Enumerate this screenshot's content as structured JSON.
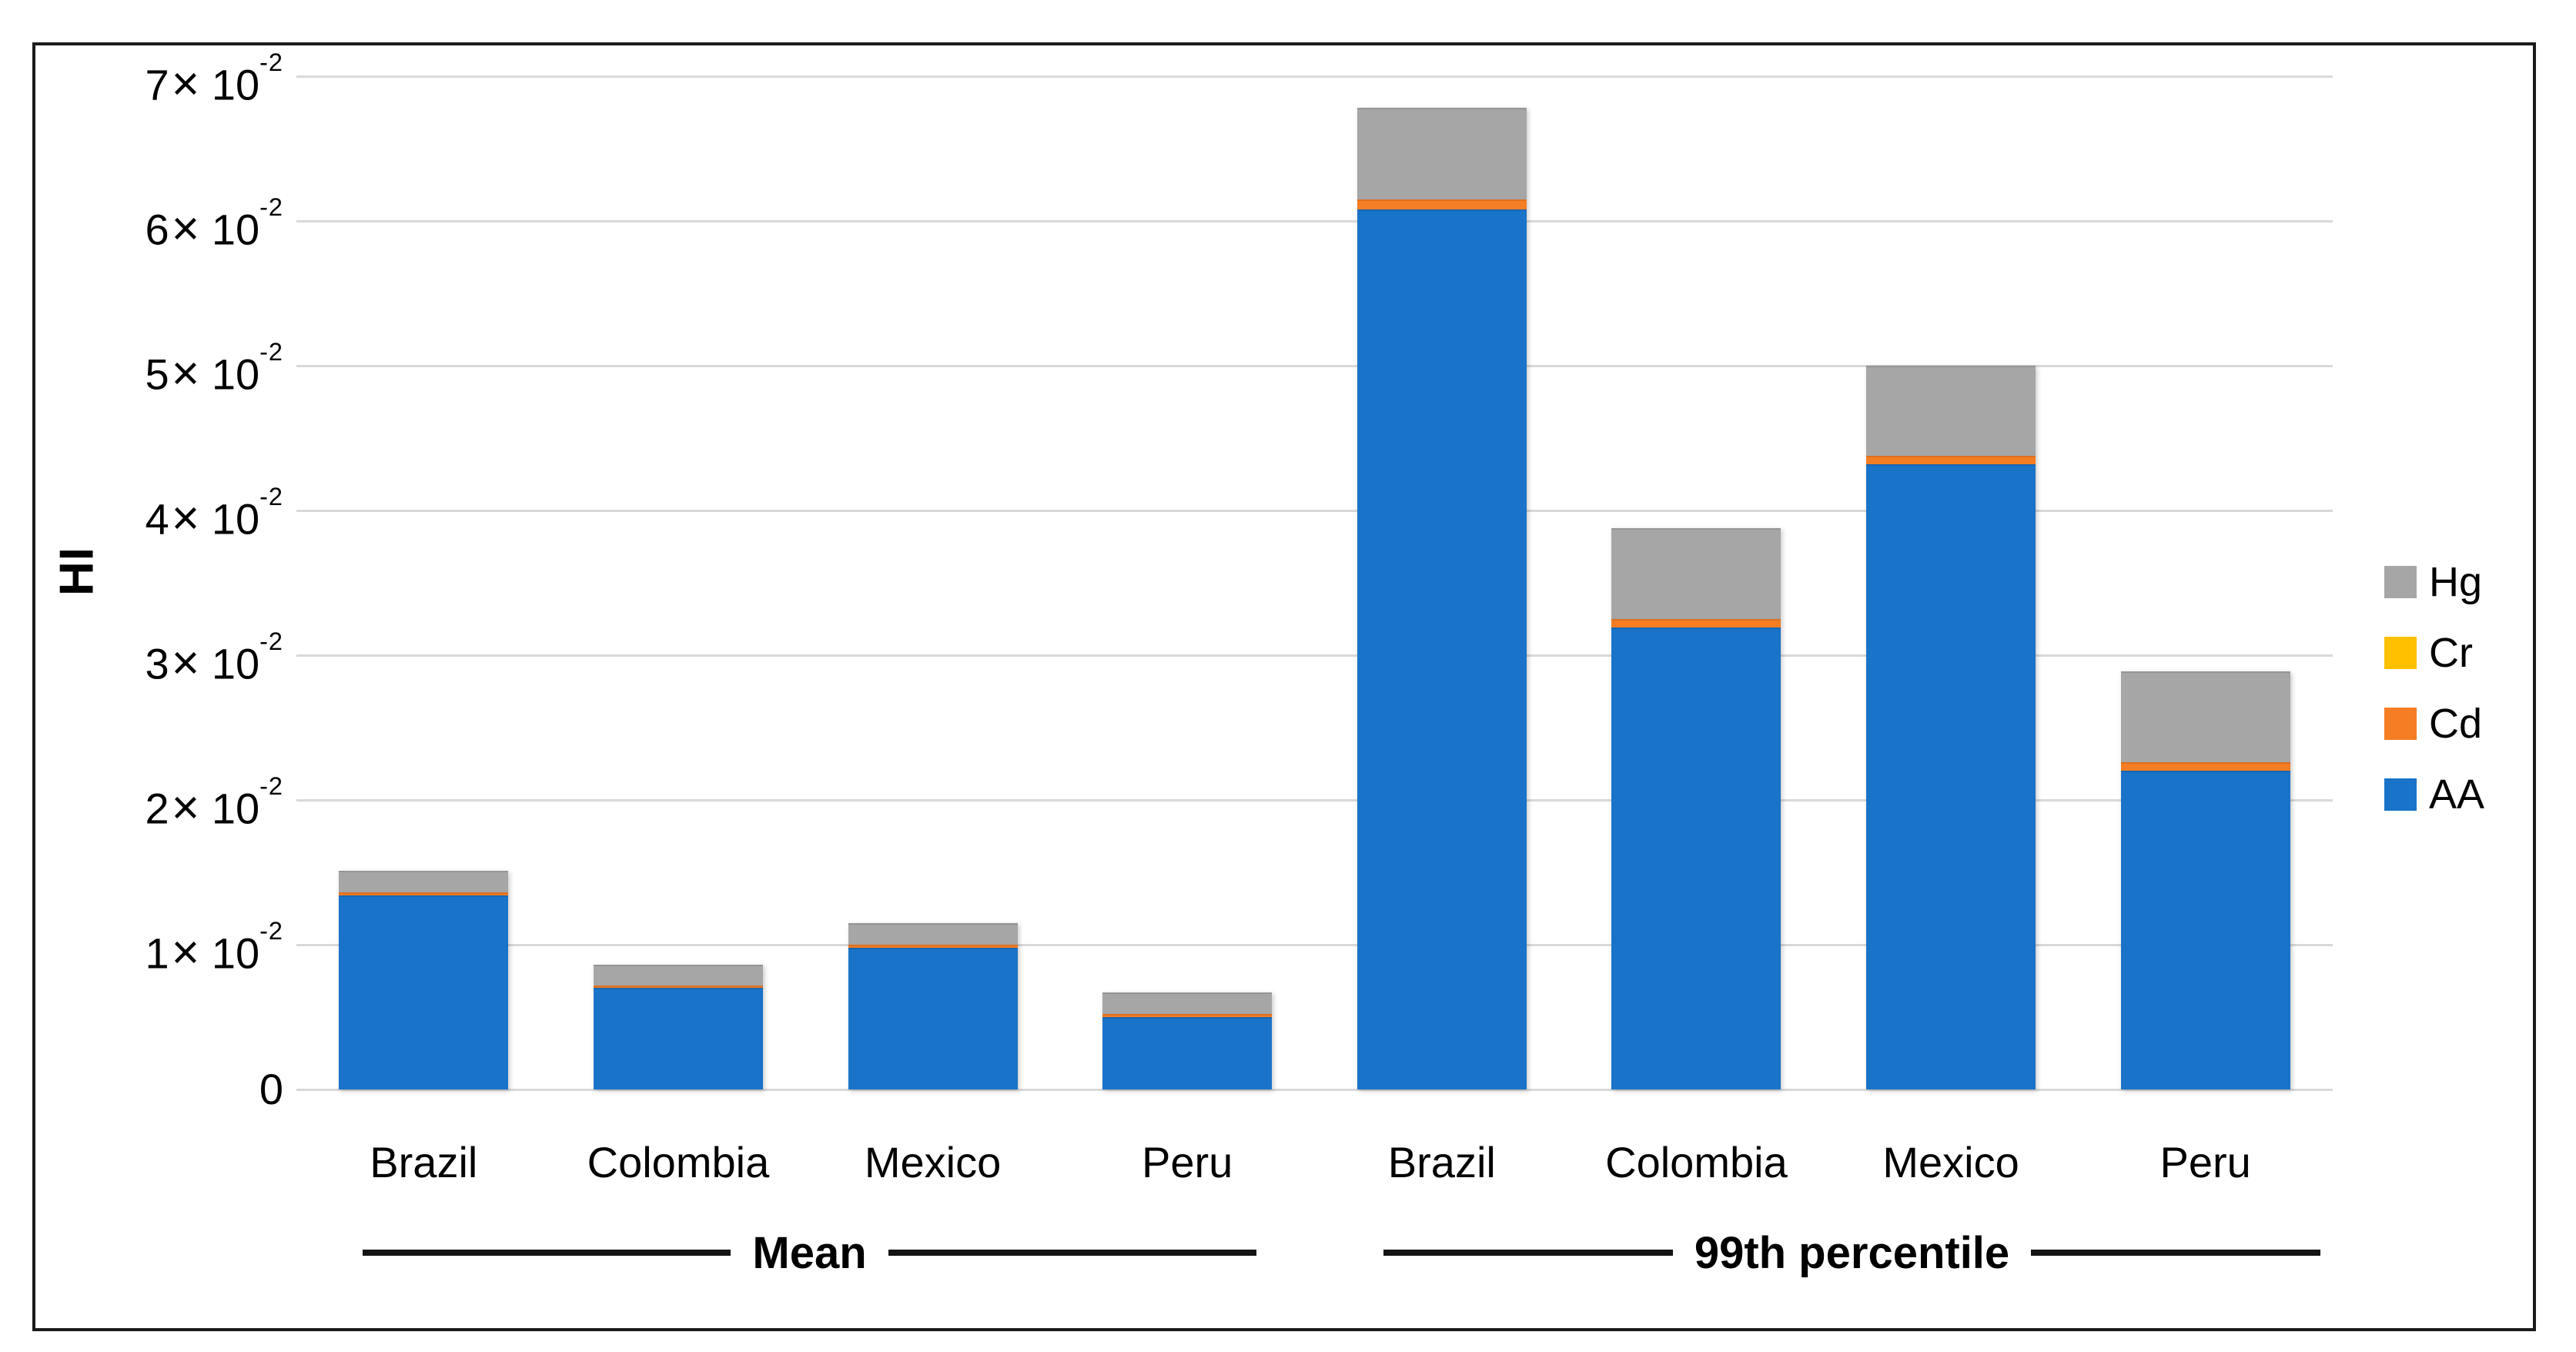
{
  "chart_data": {
    "type": "bar",
    "stacked": true,
    "title": "",
    "xlabel": "",
    "ylabel": "HI",
    "ylim": [
      0,
      0.07
    ],
    "ytick_coefs": [
      0,
      1,
      2,
      3,
      4,
      5,
      6,
      7
    ],
    "ytick_label_format": "c × 10⁻²  (0 shown as 0)",
    "grid": true,
    "gridline_color": "#d9d9d9",
    "categories": [
      "Brazil",
      "Colombia",
      "Mexico",
      "Peru",
      "Brazil",
      "Colombia",
      "Mexico",
      "Peru"
    ],
    "groups": [
      {
        "label": "Mean",
        "category_indexes": [
          0,
          1,
          2,
          3
        ]
      },
      {
        "label": "99th percentile",
        "category_indexes": [
          4,
          5,
          6,
          7
        ]
      }
    ],
    "series": [
      {
        "name": "AA",
        "color": "#1973C8",
        "values": [
          0.0134,
          0.007,
          0.0098,
          0.005,
          0.0608,
          0.0319,
          0.0432,
          0.022
        ]
      },
      {
        "name": "Cd",
        "color": "#F57D23",
        "values": [
          0.0002,
          0.0002,
          0.0002,
          0.0002,
          0.0007,
          0.0006,
          0.0006,
          0.0006
        ]
      },
      {
        "name": "Cr",
        "color": "#FFC000",
        "values": [
          0,
          0,
          0,
          0,
          0,
          0,
          0,
          0
        ]
      },
      {
        "name": "Hg",
        "color": "#A6A6A6",
        "values": [
          0.0015,
          0.0014,
          0.0015,
          0.0015,
          0.0063,
          0.0063,
          0.0062,
          0.0063
        ]
      }
    ],
    "legend_position": "right",
    "legend_order": [
      "Hg",
      "Cr",
      "Cd",
      "AA"
    ]
  }
}
